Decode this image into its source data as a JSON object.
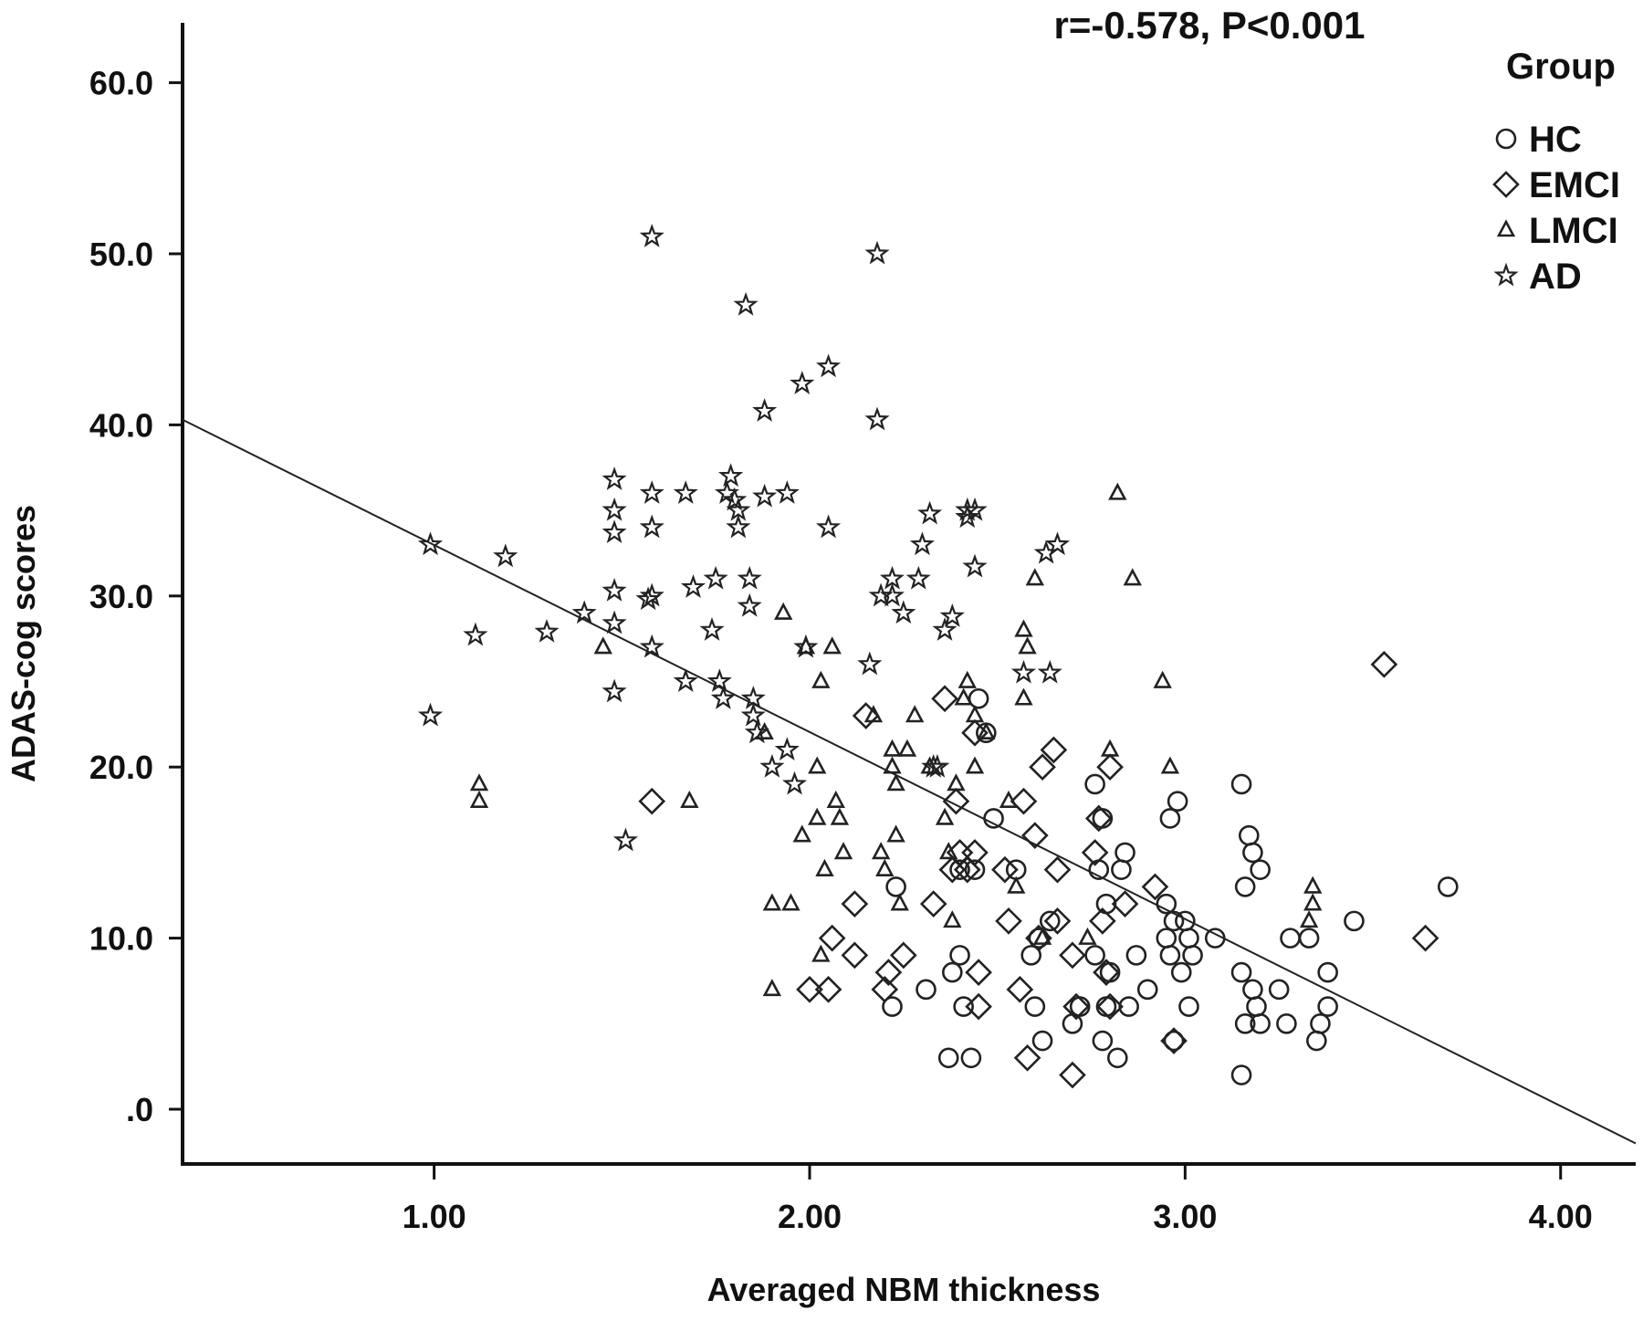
{
  "chart_data": {
    "type": "scatter",
    "annotation": "r=-0.578, P<0.001",
    "xlabel": "Averaged NBM thickness",
    "ylabel": "ADAS-cog scores",
    "xlim": [
      0.33,
      4.2
    ],
    "ylim": [
      -3.2,
      63.5
    ],
    "xticks": [
      1.0,
      2.0,
      3.0,
      4.0
    ],
    "xtick_labels": [
      "1.00",
      "2.00",
      "3.00",
      "4.00"
    ],
    "yticks": [
      0,
      10,
      20,
      30,
      40,
      50,
      60
    ],
    "ytick_labels": [
      ".0",
      "10.0",
      "20.0",
      "30.0",
      "40.0",
      "50.0",
      "60.0"
    ],
    "grid": false,
    "legend": {
      "title": "Group",
      "position": "top-right",
      "entries": [
        {
          "label": "HC",
          "marker": "circle"
        },
        {
          "label": "EMCI",
          "marker": "diamond"
        },
        {
          "label": "LMCI",
          "marker": "triangle"
        },
        {
          "label": "AD",
          "marker": "star"
        }
      ]
    },
    "fit_line": {
      "x": [
        0.33,
        4.2
      ],
      "y": [
        40.3,
        -2.0
      ]
    },
    "series": [
      {
        "name": "HC",
        "marker": "circle",
        "points": [
          [
            2.23,
            13
          ],
          [
            2.22,
            6
          ],
          [
            2.31,
            7
          ],
          [
            2.37,
            3
          ],
          [
            2.43,
            3
          ],
          [
            2.4,
            9
          ],
          [
            2.38,
            8
          ],
          [
            2.41,
            6
          ],
          [
            2.44,
            14
          ],
          [
            2.4,
            14
          ],
          [
            2.45,
            24
          ],
          [
            2.47,
            22
          ],
          [
            2.49,
            17
          ],
          [
            2.55,
            14
          ],
          [
            2.59,
            9
          ],
          [
            2.61,
            10
          ],
          [
            2.62,
            4
          ],
          [
            2.6,
            6
          ],
          [
            2.64,
            11
          ],
          [
            2.7,
            5
          ],
          [
            2.72,
            6
          ],
          [
            2.76,
            19
          ],
          [
            2.78,
            17
          ],
          [
            2.77,
            14
          ],
          [
            2.79,
            12
          ],
          [
            2.76,
            9
          ],
          [
            2.8,
            8
          ],
          [
            2.79,
            6
          ],
          [
            2.78,
            4
          ],
          [
            2.82,
            3
          ],
          [
            2.84,
            15
          ],
          [
            2.83,
            14
          ],
          [
            2.85,
            6
          ],
          [
            2.87,
            9
          ],
          [
            2.9,
            7
          ],
          [
            2.96,
            17
          ],
          [
            2.98,
            18
          ],
          [
            2.95,
            12
          ],
          [
            2.97,
            11
          ],
          [
            2.95,
            10
          ],
          [
            2.96,
            9
          ],
          [
            2.99,
            8
          ],
          [
            2.97,
            4
          ],
          [
            3.0,
            11
          ],
          [
            3.01,
            10
          ],
          [
            3.02,
            9
          ],
          [
            3.01,
            6
          ],
          [
            3.08,
            10
          ],
          [
            3.15,
            19
          ],
          [
            3.17,
            16
          ],
          [
            3.18,
            15
          ],
          [
            3.16,
            13
          ],
          [
            3.2,
            14
          ],
          [
            3.15,
            8
          ],
          [
            3.18,
            7
          ],
          [
            3.19,
            6
          ],
          [
            3.16,
            5
          ],
          [
            3.15,
            2
          ],
          [
            3.2,
            5
          ],
          [
            3.25,
            7
          ],
          [
            3.28,
            10
          ],
          [
            3.27,
            5
          ],
          [
            3.33,
            10
          ],
          [
            3.35,
            4
          ],
          [
            3.36,
            5
          ],
          [
            3.38,
            6
          ],
          [
            3.38,
            8
          ],
          [
            3.45,
            11
          ],
          [
            3.7,
            13
          ]
        ]
      },
      {
        "name": "EMCI",
        "marker": "diamond",
        "points": [
          [
            1.58,
            18
          ],
          [
            2.0,
            7
          ],
          [
            2.05,
            7
          ],
          [
            2.06,
            10
          ],
          [
            2.12,
            9
          ],
          [
            2.12,
            12
          ],
          [
            2.15,
            23
          ],
          [
            2.2,
            7
          ],
          [
            2.21,
            8
          ],
          [
            2.25,
            9
          ],
          [
            2.33,
            12
          ],
          [
            2.36,
            24
          ],
          [
            2.38,
            14
          ],
          [
            2.39,
            18
          ],
          [
            2.4,
            15
          ],
          [
            2.42,
            14
          ],
          [
            2.44,
            15
          ],
          [
            2.45,
            8
          ],
          [
            2.45,
            6
          ],
          [
            2.44,
            22
          ],
          [
            2.52,
            14
          ],
          [
            2.53,
            11
          ],
          [
            2.56,
            7
          ],
          [
            2.57,
            18
          ],
          [
            2.58,
            3
          ],
          [
            2.6,
            16
          ],
          [
            2.61,
            10
          ],
          [
            2.62,
            20
          ],
          [
            2.65,
            21
          ],
          [
            2.66,
            14
          ],
          [
            2.66,
            11
          ],
          [
            2.7,
            9
          ],
          [
            2.71,
            6
          ],
          [
            2.7,
            2
          ],
          [
            2.76,
            15
          ],
          [
            2.77,
            17
          ],
          [
            2.78,
            11
          ],
          [
            2.8,
            20
          ],
          [
            2.79,
            8
          ],
          [
            2.8,
            6
          ],
          [
            2.84,
            12
          ],
          [
            2.92,
            13
          ],
          [
            2.97,
            4
          ],
          [
            3.53,
            26
          ],
          [
            3.64,
            10
          ]
        ]
      },
      {
        "name": "LMCI",
        "marker": "triangle",
        "points": [
          [
            1.12,
            19
          ],
          [
            1.12,
            18
          ],
          [
            1.45,
            27
          ],
          [
            1.68,
            18
          ],
          [
            1.88,
            22
          ],
          [
            1.9,
            12
          ],
          [
            1.9,
            7
          ],
          [
            1.93,
            29
          ],
          [
            1.95,
            12
          ],
          [
            1.98,
            16
          ],
          [
            1.99,
            27
          ],
          [
            2.03,
            25
          ],
          [
            2.02,
            20
          ],
          [
            2.02,
            17
          ],
          [
            2.03,
            9
          ],
          [
            2.04,
            14
          ],
          [
            2.06,
            27
          ],
          [
            2.07,
            18
          ],
          [
            2.08,
            17
          ],
          [
            2.09,
            15
          ],
          [
            2.17,
            23
          ],
          [
            2.19,
            15
          ],
          [
            2.2,
            14
          ],
          [
            2.22,
            21
          ],
          [
            2.22,
            20
          ],
          [
            2.23,
            19
          ],
          [
            2.23,
            16
          ],
          [
            2.24,
            12
          ],
          [
            2.26,
            21
          ],
          [
            2.28,
            23
          ],
          [
            2.32,
            20
          ],
          [
            2.36,
            17
          ],
          [
            2.37,
            15
          ],
          [
            2.38,
            11
          ],
          [
            2.39,
            19
          ],
          [
            2.41,
            24
          ],
          [
            2.42,
            25
          ],
          [
            2.44,
            20
          ],
          [
            2.44,
            23
          ],
          [
            2.47,
            22
          ],
          [
            2.53,
            18
          ],
          [
            2.55,
            13
          ],
          [
            2.57,
            28
          ],
          [
            2.57,
            24
          ],
          [
            2.58,
            27
          ],
          [
            2.6,
            31
          ],
          [
            2.62,
            10
          ],
          [
            2.74,
            10
          ],
          [
            2.8,
            21
          ],
          [
            2.82,
            36
          ],
          [
            2.86,
            31
          ],
          [
            2.94,
            25
          ],
          [
            2.96,
            20
          ],
          [
            3.34,
            13
          ],
          [
            3.34,
            12
          ],
          [
            3.33,
            11
          ]
        ]
      },
      {
        "name": "AD",
        "marker": "star",
        "points": [
          [
            0.99,
            33
          ],
          [
            0.99,
            23
          ],
          [
            1.11,
            27.7
          ],
          [
            1.19,
            32.3
          ],
          [
            1.3,
            27.9
          ],
          [
            1.4,
            29
          ],
          [
            1.48,
            36.8
          ],
          [
            1.48,
            35
          ],
          [
            1.48,
            33.7
          ],
          [
            1.48,
            30.3
          ],
          [
            1.48,
            28.4
          ],
          [
            1.48,
            24.4
          ],
          [
            1.51,
            15.7
          ],
          [
            1.58,
            51
          ],
          [
            1.58,
            36
          ],
          [
            1.58,
            34
          ],
          [
            1.58,
            30
          ],
          [
            1.57,
            29.8
          ],
          [
            1.58,
            27
          ],
          [
            1.67,
            36
          ],
          [
            1.67,
            25
          ],
          [
            1.69,
            30.5
          ],
          [
            1.74,
            28
          ],
          [
            1.75,
            31
          ],
          [
            1.76,
            25
          ],
          [
            1.77,
            24
          ],
          [
            1.78,
            36
          ],
          [
            1.79,
            37
          ],
          [
            1.8,
            35.6
          ],
          [
            1.81,
            35
          ],
          [
            1.81,
            34
          ],
          [
            1.83,
            47
          ],
          [
            1.84,
            31
          ],
          [
            1.84,
            29.4
          ],
          [
            1.85,
            24
          ],
          [
            1.85,
            23
          ],
          [
            1.86,
            22
          ],
          [
            1.88,
            40.8
          ],
          [
            1.88,
            35.8
          ],
          [
            1.9,
            20
          ],
          [
            1.94,
            36
          ],
          [
            1.94,
            21
          ],
          [
            1.96,
            19
          ],
          [
            1.98,
            42.4
          ],
          [
            1.99,
            27
          ],
          [
            2.05,
            43.4
          ],
          [
            2.05,
            34
          ],
          [
            2.16,
            26
          ],
          [
            2.18,
            50
          ],
          [
            2.18,
            40.3
          ],
          [
            2.19,
            30
          ],
          [
            2.22,
            31
          ],
          [
            2.22,
            30
          ],
          [
            2.25,
            29
          ],
          [
            2.29,
            31
          ],
          [
            2.3,
            33
          ],
          [
            2.32,
            34.8
          ],
          [
            2.33,
            20
          ],
          [
            2.34,
            20
          ],
          [
            2.36,
            28
          ],
          [
            2.38,
            28.8
          ],
          [
            2.42,
            35
          ],
          [
            2.42,
            34.6
          ],
          [
            2.44,
            35
          ],
          [
            2.44,
            31.7
          ],
          [
            2.57,
            25.5
          ],
          [
            2.63,
            32.5
          ],
          [
            2.64,
            25.5
          ],
          [
            2.66,
            33
          ]
        ]
      }
    ]
  }
}
